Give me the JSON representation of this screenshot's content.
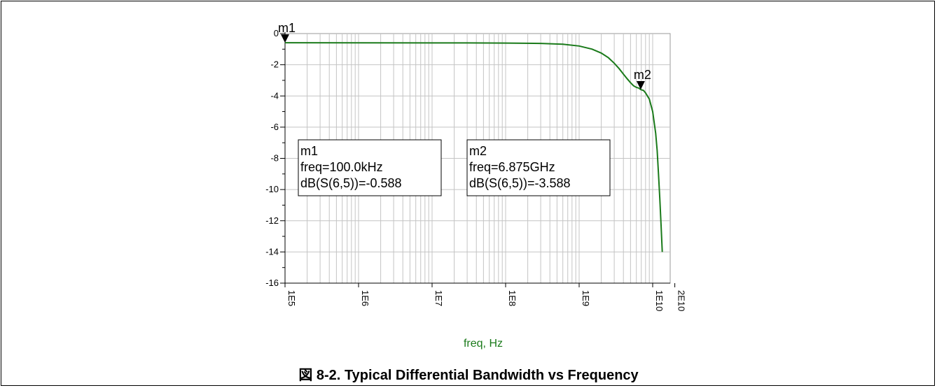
{
  "chart_data": {
    "type": "line",
    "xlabel": "freq, Hz",
    "ylabel": "",
    "x_scale": "log",
    "xlim": [
      100000,
      20000000000
    ],
    "ylim": [
      -16,
      0
    ],
    "grid": true,
    "xticks": [
      "1E5",
      "1E6",
      "1E7",
      "1E8",
      "1E9",
      "1E10",
      "2E10"
    ],
    "x_tick_values": [
      100000,
      1000000,
      10000000,
      100000000,
      1000000000,
      10000000000,
      20000000000
    ],
    "yticks": [
      0,
      -2,
      -4,
      -6,
      -8,
      -10,
      -12,
      -14,
      -16
    ],
    "series": [
      {
        "x": [
          100000,
          1000000,
          10000000,
          30000000,
          100000000,
          300000000,
          600000000,
          1000000000,
          1500000000,
          2000000000,
          2500000000,
          3000000000,
          3500000000,
          4000000000,
          4500000000,
          5000000000,
          5500000000,
          6000000000,
          6500000000,
          6875000000,
          7500000000,
          8000000000,
          9000000000,
          10000000000,
          11000000000,
          11500000000,
          12000000000,
          12500000000,
          13000000000,
          13500000000
        ],
        "y": [
          -0.588,
          -0.59,
          -0.6,
          -0.6,
          -0.61,
          -0.63,
          -0.68,
          -0.8,
          -1.0,
          -1.25,
          -1.55,
          -1.9,
          -2.25,
          -2.6,
          -2.9,
          -3.15,
          -3.35,
          -3.45,
          -3.5,
          -3.588,
          -3.65,
          -3.8,
          -4.2,
          -5.0,
          -6.4,
          -7.5,
          -9.0,
          -10.6,
          -12.3,
          -14.0
        ]
      }
    ],
    "markers": [
      {
        "name": "m1",
        "freq": "freq=100.0kHz",
        "value": "dB(S(6,5))=-0.588",
        "x": 100000,
        "y": -0.588
      },
      {
        "name": "m2",
        "freq": "freq=6.875GHz",
        "value": "dB(S(6,5))=-3.588",
        "x": 6875000000,
        "y": -3.588
      }
    ],
    "colors": {
      "series": "#1a7a1a",
      "grid": "#c4c4c4",
      "xlabel": "#1a7a1a"
    }
  },
  "caption": {
    "figure_label": "図 8-2.",
    "text": "Typical Differential Bandwidth vs Frequency"
  }
}
